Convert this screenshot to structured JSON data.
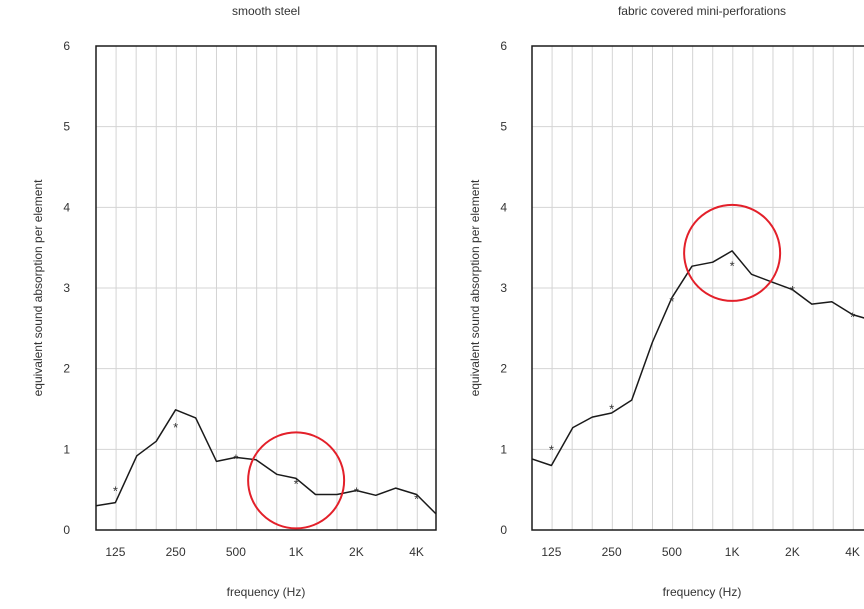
{
  "chart_data": [
    {
      "type": "line",
      "title": "smooth steel",
      "xlabel": "frequency (Hz)",
      "ylabel": "equivalent sound absorption per element",
      "x_tick_labels": [
        "125",
        "250",
        "500",
        "1K",
        "2K",
        "4K"
      ],
      "y_tick_labels": [
        "0",
        "1",
        "2",
        "3",
        "4",
        "5",
        "6"
      ],
      "ylim": [
        0,
        6
      ],
      "grid": true,
      "series": [
        {
          "style": "line",
          "x": [
            100,
            125,
            160,
            200,
            250,
            315,
            400,
            500,
            630,
            800,
            1000,
            1250,
            1600,
            2000,
            2500,
            3150,
            4000,
            5000
          ],
          "y": [
            0.3,
            0.34,
            0.92,
            1.1,
            1.49,
            1.39,
            0.85,
            0.9,
            0.87,
            0.69,
            0.64,
            0.44,
            0.44,
            0.49,
            0.43,
            0.52,
            0.44,
            0.2
          ]
        },
        {
          "style": "markers",
          "marker": "*",
          "x": [
            125,
            250,
            500,
            1000,
            2000,
            4000
          ],
          "y": [
            0.5,
            1.29,
            0.9,
            0.59,
            0.49,
            0.4
          ]
        }
      ],
      "annotations": [
        {
          "type": "circle",
          "color": "#e3202a",
          "at": "1K"
        }
      ]
    },
    {
      "type": "line",
      "title": "fabric covered mini-perforations",
      "xlabel": "frequency (Hz)",
      "ylabel": "equivalent sound absorption per element",
      "x_tick_labels": [
        "125",
        "250",
        "500",
        "1K",
        "2K",
        "4K"
      ],
      "y_tick_labels": [
        "0",
        "1",
        "2",
        "3",
        "4",
        "5",
        "6"
      ],
      "ylim": [
        0,
        6
      ],
      "grid": true,
      "series": [
        {
          "style": "line",
          "x": [
            100,
            125,
            160,
            200,
            250,
            315,
            400,
            500,
            630,
            800,
            1000,
            1250,
            1600,
            2000,
            2500,
            3150,
            4000,
            5000
          ],
          "y": [
            0.88,
            0.8,
            1.27,
            1.4,
            1.45,
            1.61,
            2.33,
            2.88,
            3.27,
            3.32,
            3.46,
            3.17,
            3.07,
            2.98,
            2.8,
            2.83,
            2.67,
            2.6
          ]
        },
        {
          "style": "markers",
          "marker": "*",
          "x": [
            125,
            250,
            500,
            1000,
            2000,
            4000
          ],
          "y": [
            1.01,
            1.52,
            2.85,
            3.29,
            2.99,
            2.66
          ]
        }
      ],
      "annotations": [
        {
          "type": "circle",
          "color": "#e3202a",
          "at": "1K"
        }
      ]
    }
  ]
}
